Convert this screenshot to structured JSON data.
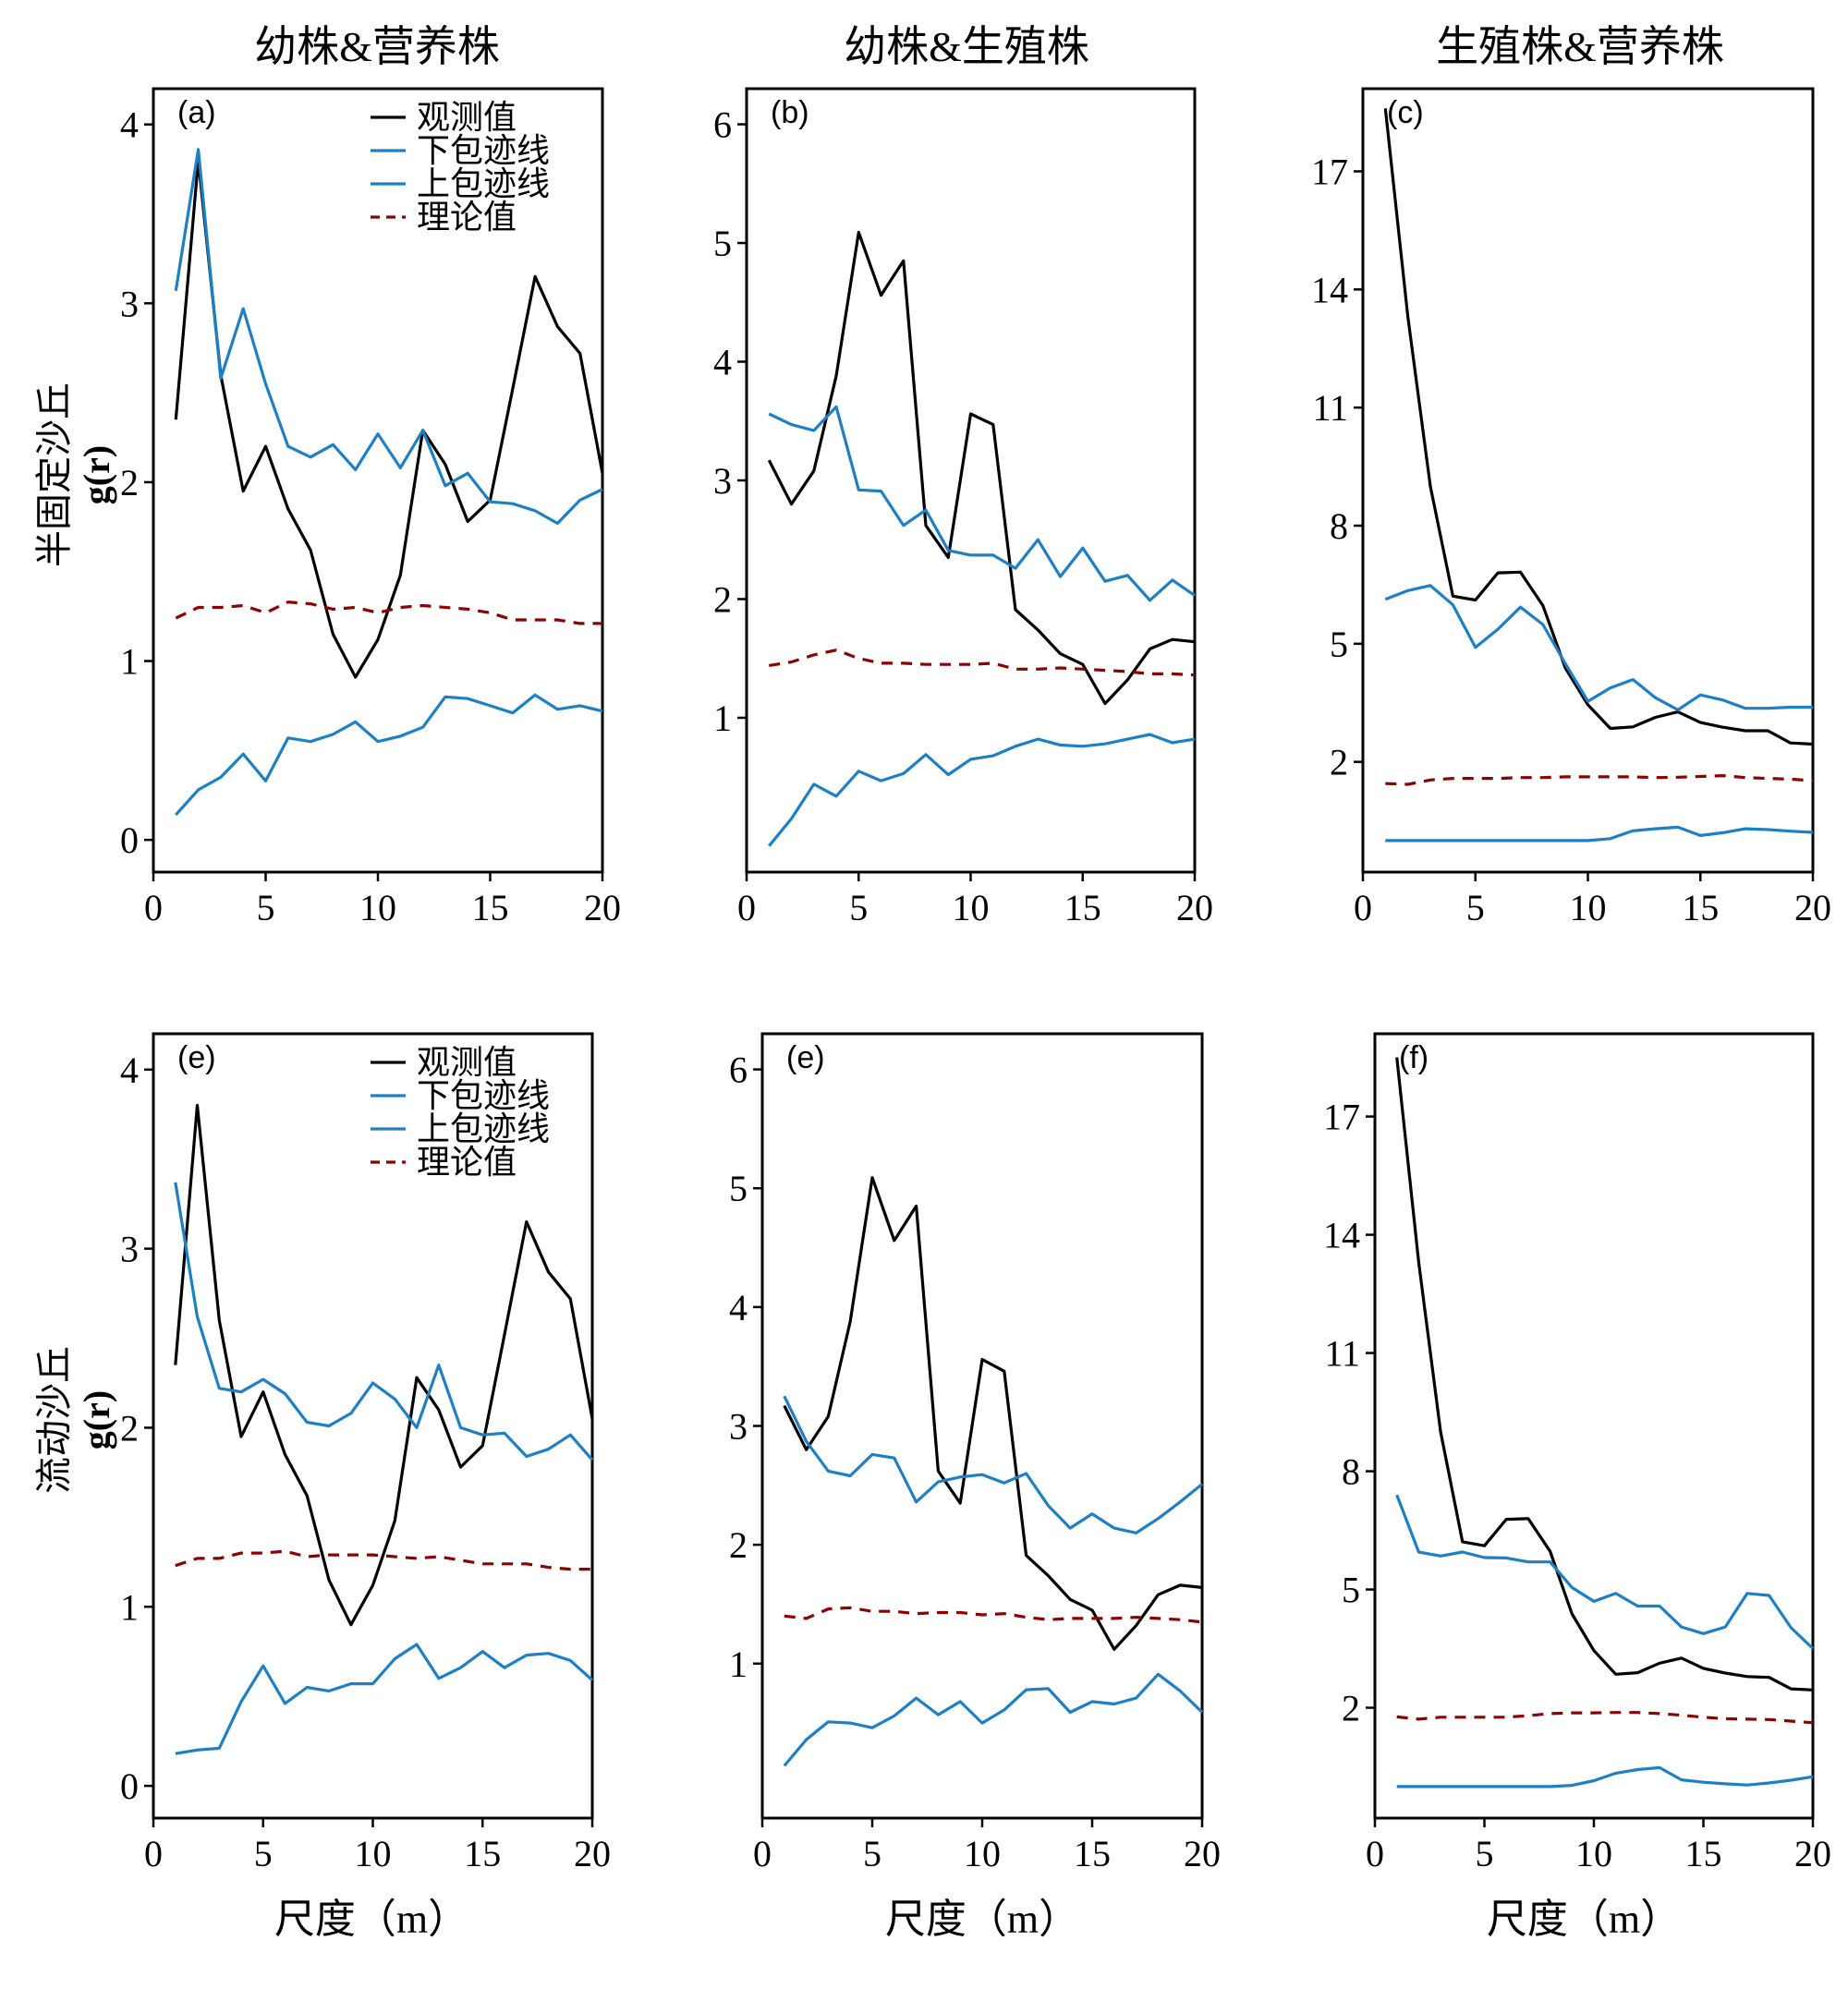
{
  "colors": {
    "observed": "#000000",
    "envelope": "#1f7fc4",
    "theory": "#8b0000",
    "axis": "#000000"
  },
  "column_titles": [
    "幼株&营养株",
    "幼株&生殖株",
    "生殖株&营养株"
  ],
  "row_labels": [
    "半固定沙丘",
    "流动沙丘"
  ],
  "y_axis_label": "g(r)",
  "x_axis_label": "尺度（m）",
  "legend": {
    "observed": "观测值",
    "lower": "下包迹线",
    "upper": "上包迹线",
    "theory": "理论值"
  },
  "chart_data": [
    {
      "type": "line",
      "panel": "(a)",
      "row": 0,
      "col": 0,
      "xlim": [
        0,
        20
      ],
      "ylim": [
        -0.18,
        4.2
      ],
      "xticks": [
        0,
        5,
        10,
        15,
        20
      ],
      "yticks": [
        0,
        1,
        2,
        3,
        4
      ],
      "x": [
        1,
        2,
        3,
        4,
        5,
        6,
        7,
        8,
        9,
        10,
        11,
        12,
        13,
        14,
        15,
        16,
        17,
        18,
        19,
        20
      ],
      "series": [
        {
          "name": "观测值",
          "role": "observed",
          "values": [
            2.35,
            3.8,
            2.6,
            1.95,
            2.2,
            1.85,
            1.62,
            1.15,
            0.91,
            1.12,
            1.48,
            2.29,
            2.1,
            1.78,
            1.9,
            2.52,
            3.15,
            2.87,
            2.72,
            2.05
          ]
        },
        {
          "name": "下包迹线",
          "role": "envelope_top",
          "values": [
            3.07,
            3.86,
            2.58,
            2.97,
            2.55,
            2.2,
            2.14,
            2.21,
            2.07,
            2.27,
            2.08,
            2.29,
            1.98,
            2.05,
            1.89,
            1.88,
            1.84,
            1.77,
            1.9,
            1.96
          ]
        },
        {
          "name": "上包迹线",
          "role": "envelope_bottom",
          "values": [
            0.14,
            0.28,
            0.35,
            0.48,
            0.33,
            0.57,
            0.55,
            0.59,
            0.66,
            0.55,
            0.58,
            0.63,
            0.8,
            0.79,
            0.75,
            0.71,
            0.81,
            0.73,
            0.75,
            0.72
          ]
        },
        {
          "name": "理论值",
          "role": "theory",
          "values": [
            1.24,
            1.3,
            1.3,
            1.31,
            1.27,
            1.33,
            1.32,
            1.29,
            1.3,
            1.27,
            1.3,
            1.31,
            1.3,
            1.29,
            1.27,
            1.23,
            1.23,
            1.23,
            1.21,
            1.21
          ]
        }
      ]
    },
    {
      "type": "line",
      "panel": "(b)",
      "row": 0,
      "col": 1,
      "xlim": [
        0,
        20
      ],
      "ylim": [
        -0.3,
        6.3
      ],
      "xticks": [
        0,
        5,
        10,
        15,
        20
      ],
      "yticks": [
        1,
        2,
        3,
        4,
        5,
        6
      ],
      "x": [
        1,
        2,
        3,
        4,
        5,
        6,
        7,
        8,
        9,
        10,
        11,
        12,
        13,
        14,
        15,
        16,
        17,
        18,
        19,
        20
      ],
      "series": [
        {
          "name": "观测值",
          "role": "observed",
          "values": [
            3.17,
            2.8,
            3.08,
            3.88,
            5.09,
            4.56,
            4.85,
            2.62,
            2.35,
            3.56,
            3.47,
            1.91,
            1.74,
            1.54,
            1.45,
            1.12,
            1.32,
            1.58,
            1.66,
            1.64
          ]
        },
        {
          "name": "下包迹线",
          "role": "envelope_top",
          "values": [
            3.56,
            3.47,
            3.42,
            3.62,
            2.92,
            2.91,
            2.62,
            2.75,
            2.41,
            2.37,
            2.37,
            2.26,
            2.5,
            2.19,
            2.43,
            2.15,
            2.2,
            1.99,
            2.16,
            2.03
          ]
        },
        {
          "name": "上包迹线",
          "role": "envelope_bottom",
          "values": [
            -0.08,
            0.15,
            0.44,
            0.34,
            0.55,
            0.47,
            0.53,
            0.69,
            0.52,
            0.65,
            0.68,
            0.76,
            0.82,
            0.77,
            0.76,
            0.78,
            0.82,
            0.86,
            0.79,
            0.82
          ]
        },
        {
          "name": "理论值",
          "role": "theory",
          "values": [
            1.44,
            1.47,
            1.53,
            1.57,
            1.5,
            1.46,
            1.46,
            1.45,
            1.45,
            1.45,
            1.46,
            1.41,
            1.41,
            1.42,
            1.41,
            1.4,
            1.39,
            1.37,
            1.37,
            1.36
          ]
        }
      ]
    },
    {
      "type": "line",
      "panel": "(c)",
      "row": 0,
      "col": 2,
      "xlim": [
        0,
        20
      ],
      "ylim": [
        -0.8,
        19.1
      ],
      "xticks": [
        0,
        5,
        10,
        15,
        20
      ],
      "yticks": [
        2,
        5,
        8,
        11,
        14,
        17
      ],
      "x": [
        1,
        2,
        3,
        4,
        5,
        6,
        7,
        8,
        9,
        10,
        11,
        12,
        13,
        14,
        15,
        16,
        17,
        18,
        19,
        20
      ],
      "series": [
        {
          "name": "观测值",
          "role": "observed",
          "values": [
            18.6,
            13.3,
            9.0,
            6.21,
            6.11,
            6.8,
            6.82,
            5.97,
            4.38,
            3.45,
            2.85,
            2.89,
            3.13,
            3.27,
            3.0,
            2.88,
            2.79,
            2.79,
            2.48,
            2.45
          ]
        },
        {
          "name": "下包迹线",
          "role": "envelope_top",
          "values": [
            6.13,
            6.35,
            6.48,
            5.99,
            4.91,
            5.37,
            5.93,
            5.49,
            4.49,
            3.54,
            3.88,
            4.09,
            3.63,
            3.32,
            3.7,
            3.57,
            3.36,
            3.36,
            3.39,
            3.39
          ]
        },
        {
          "name": "上包迹线",
          "role": "envelope_bottom",
          "values": [
            0.0,
            0.0,
            0.0,
            0.0,
            0.0,
            0.0,
            0.0,
            0.0,
            0.0,
            0.0,
            0.05,
            0.25,
            0.3,
            0.34,
            0.13,
            0.2,
            0.3,
            0.28,
            0.24,
            0.21
          ]
        },
        {
          "name": "理论值",
          "role": "theory",
          "values": [
            1.45,
            1.43,
            1.54,
            1.58,
            1.58,
            1.58,
            1.6,
            1.6,
            1.62,
            1.62,
            1.62,
            1.62,
            1.6,
            1.61,
            1.63,
            1.65,
            1.6,
            1.58,
            1.56,
            1.52
          ]
        }
      ]
    },
    {
      "type": "line",
      "panel": "(e)",
      "row": 1,
      "col": 0,
      "xlim": [
        0,
        20
      ],
      "ylim": [
        -0.18,
        4.2
      ],
      "xticks": [
        0,
        5,
        10,
        15,
        20
      ],
      "yticks": [
        0,
        1,
        2,
        3,
        4
      ],
      "x": [
        1,
        2,
        3,
        4,
        5,
        6,
        7,
        8,
        9,
        10,
        11,
        12,
        13,
        14,
        15,
        16,
        17,
        18,
        19,
        20
      ],
      "series": [
        {
          "name": "观测值",
          "role": "observed",
          "values": [
            2.35,
            3.8,
            2.6,
            1.95,
            2.2,
            1.85,
            1.62,
            1.15,
            0.9,
            1.12,
            1.48,
            2.28,
            2.1,
            1.78,
            1.9,
            2.52,
            3.15,
            2.87,
            2.72,
            2.05
          ]
        },
        {
          "name": "下包迹线",
          "role": "envelope_top",
          "values": [
            3.37,
            2.62,
            2.22,
            2.2,
            2.27,
            2.19,
            2.03,
            2.01,
            2.08,
            2.25,
            2.16,
            2.0,
            2.35,
            2.0,
            1.96,
            1.97,
            1.84,
            1.88,
            1.96,
            1.82
          ]
        },
        {
          "name": "上包迹线",
          "role": "envelope_bottom",
          "values": [
            0.18,
            0.2,
            0.21,
            0.47,
            0.67,
            0.46,
            0.55,
            0.53,
            0.57,
            0.57,
            0.71,
            0.79,
            0.6,
            0.66,
            0.75,
            0.66,
            0.73,
            0.74,
            0.7,
            0.59
          ]
        },
        {
          "name": "理论值",
          "role": "theory",
          "values": [
            1.23,
            1.27,
            1.27,
            1.3,
            1.3,
            1.31,
            1.28,
            1.29,
            1.29,
            1.29,
            1.28,
            1.27,
            1.28,
            1.26,
            1.24,
            1.24,
            1.24,
            1.22,
            1.21,
            1.21
          ]
        }
      ]
    },
    {
      "type": "line",
      "panel": "(e)",
      "row": 1,
      "col": 1,
      "xlim": [
        0,
        20
      ],
      "ylim": [
        -0.3,
        6.3
      ],
      "xticks": [
        0,
        5,
        10,
        15,
        20
      ],
      "yticks": [
        1,
        2,
        3,
        4,
        5,
        6
      ],
      "x": [
        1,
        2,
        3,
        4,
        5,
        6,
        7,
        8,
        9,
        10,
        11,
        12,
        13,
        14,
        15,
        16,
        17,
        18,
        19,
        20
      ],
      "series": [
        {
          "name": "观测值",
          "role": "observed",
          "values": [
            3.17,
            2.8,
            3.08,
            3.88,
            5.09,
            4.56,
            4.85,
            2.62,
            2.35,
            3.56,
            3.46,
            1.91,
            1.74,
            1.54,
            1.45,
            1.12,
            1.32,
            1.58,
            1.66,
            1.64
          ]
        },
        {
          "name": "下包迹线",
          "role": "envelope_top",
          "values": [
            3.25,
            2.87,
            2.62,
            2.58,
            2.76,
            2.73,
            2.36,
            2.53,
            2.57,
            2.59,
            2.52,
            2.6,
            2.33,
            2.14,
            2.26,
            2.14,
            2.1,
            2.22,
            2.36,
            2.51
          ]
        },
        {
          "name": "上包迹线",
          "role": "envelope_bottom",
          "values": [
            0.14,
            0.36,
            0.51,
            0.5,
            0.46,
            0.56,
            0.71,
            0.57,
            0.68,
            0.5,
            0.61,
            0.78,
            0.79,
            0.59,
            0.68,
            0.66,
            0.71,
            0.91,
            0.77,
            0.59
          ]
        },
        {
          "name": "理论值",
          "role": "theory",
          "values": [
            1.4,
            1.38,
            1.46,
            1.47,
            1.44,
            1.44,
            1.42,
            1.43,
            1.43,
            1.41,
            1.42,
            1.39,
            1.37,
            1.38,
            1.38,
            1.38,
            1.39,
            1.38,
            1.37,
            1.35
          ]
        }
      ]
    },
    {
      "type": "line",
      "panel": "(f)",
      "row": 1,
      "col": 2,
      "xlim": [
        0,
        20
      ],
      "ylim": [
        -0.8,
        19.1
      ],
      "xticks": [
        0,
        5,
        10,
        15,
        20
      ],
      "yticks": [
        2,
        5,
        8,
        11,
        14,
        17
      ],
      "x": [
        1,
        2,
        3,
        4,
        5,
        6,
        7,
        8,
        9,
        10,
        11,
        12,
        13,
        14,
        15,
        16,
        17,
        18,
        19,
        20
      ],
      "series": [
        {
          "name": "观测值",
          "role": "observed",
          "values": [
            18.5,
            13.3,
            9.0,
            6.21,
            6.11,
            6.78,
            6.8,
            5.97,
            4.38,
            3.45,
            2.85,
            2.89,
            3.13,
            3.26,
            3.0,
            2.88,
            2.79,
            2.77,
            2.48,
            2.45
          ]
        },
        {
          "name": "下包迹线",
          "role": "envelope_top",
          "values": [
            7.4,
            5.95,
            5.85,
            5.95,
            5.81,
            5.8,
            5.7,
            5.7,
            5.05,
            4.7,
            4.9,
            4.58,
            4.58,
            4.05,
            3.88,
            4.05,
            4.9,
            4.85,
            4.03,
            3.5
          ]
        },
        {
          "name": "上包迹线",
          "role": "envelope_bottom",
          "values": [
            0.0,
            0.0,
            0.0,
            0.0,
            0.0,
            0.0,
            0.0,
            0.0,
            0.03,
            0.15,
            0.34,
            0.43,
            0.48,
            0.17,
            0.11,
            0.07,
            0.04,
            0.09,
            0.16,
            0.25
          ]
        },
        {
          "name": "理论值",
          "role": "theory",
          "values": [
            1.77,
            1.71,
            1.76,
            1.76,
            1.76,
            1.76,
            1.8,
            1.85,
            1.87,
            1.87,
            1.88,
            1.88,
            1.85,
            1.81,
            1.76,
            1.72,
            1.71,
            1.7,
            1.66,
            1.62
          ]
        }
      ]
    }
  ]
}
